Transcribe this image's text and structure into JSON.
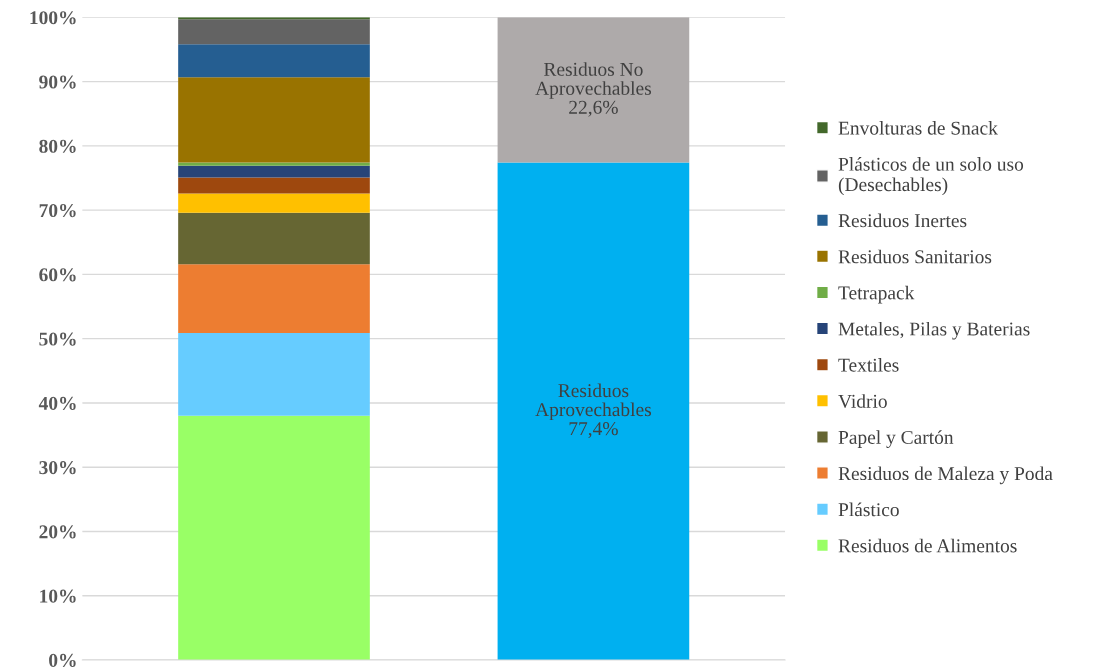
{
  "chart_data": {
    "type": "bar",
    "stacked": true,
    "categories": [
      null,
      null
    ],
    "series": [
      {
        "name": "Residuos de Alimentos",
        "color": "#99ff66",
        "values": [
          38.0,
          null
        ]
      },
      {
        "name": "Plástico",
        "color": "#66ccff",
        "values": [
          12.9,
          null
        ]
      },
      {
        "name": "Residuos de Maleza y Poda",
        "color": "#ed7d31",
        "values": [
          10.7,
          null
        ]
      },
      {
        "name": "Papel y Cartón",
        "color": "#666633",
        "values": [
          8.0,
          null
        ]
      },
      {
        "name": "Vidrio",
        "color": "#ffc000",
        "values": [
          3.0,
          null
        ]
      },
      {
        "name": "Textiles",
        "color": "#9e480e",
        "values": [
          2.5,
          null
        ]
      },
      {
        "name": "Metales, Pilas y Baterias",
        "color": "#264478",
        "values": [
          1.8,
          null
        ]
      },
      {
        "name": "Tetrapack",
        "color": "#70ad47",
        "values": [
          0.5,
          null
        ]
      },
      {
        "name": "Residuos Sanitarios",
        "color": "#997300",
        "values": [
          13.3,
          null
        ]
      },
      {
        "name": "Residuos Inertes",
        "color": "#255e91",
        "values": [
          5.1,
          null
        ]
      },
      {
        "name": "Plásticos de un solo uso (Desechables)",
        "color": "#636363",
        "values": [
          3.9,
          null
        ]
      },
      {
        "name": "Envolturas de Snack",
        "color": "#43682b",
        "values": [
          0.3,
          null
        ]
      },
      {
        "color": "#00b0f0",
        "values": [
          null,
          77.4
        ],
        "value_labels": [
          null,
          "Residuos\nAprovechables\n77,4%"
        ]
      },
      {
        "color": "#aeaaaa",
        "values": [
          null,
          22.6
        ],
        "value_labels": [
          null,
          "Residuos No\nAprovechables\n22,6%"
        ]
      }
    ],
    "ylim": [
      0,
      100
    ],
    "yticks": [
      {
        "value": 0,
        "label": "0%"
      },
      {
        "value": 10,
        "label": "10%"
      },
      {
        "value": 20,
        "label": "20%"
      },
      {
        "value": 30,
        "label": "30%"
      },
      {
        "value": 40,
        "label": "40%"
      },
      {
        "value": 50,
        "label": "50%"
      },
      {
        "value": 60,
        "label": "60%"
      },
      {
        "value": 70,
        "label": "70%"
      },
      {
        "value": 80,
        "label": "80%"
      },
      {
        "value": 90,
        "label": "90%"
      },
      {
        "value": 100,
        "label": "100%"
      }
    ],
    "grid": "y",
    "legend": "right"
  }
}
